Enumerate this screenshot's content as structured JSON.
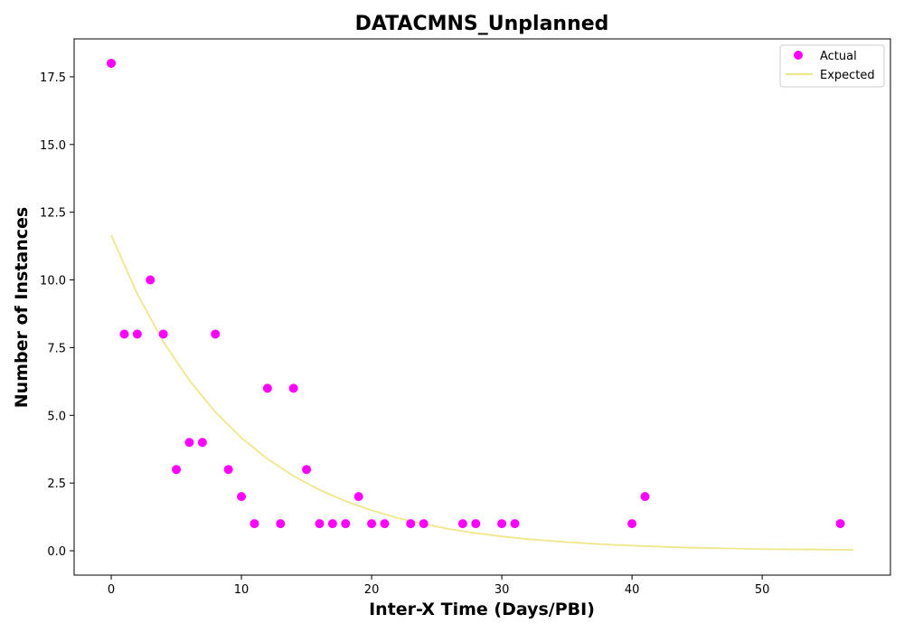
{
  "chart_data": {
    "type": "scatter",
    "title": "DATACMNS_Unplanned",
    "xlabel": "Inter-X Time (Days/PBI)",
    "ylabel": "Number of Instances",
    "xlim": [
      -2.85,
      59.85
    ],
    "ylim": [
      -0.9,
      18.9
    ],
    "x_ticks": [
      0,
      10,
      20,
      30,
      40,
      50
    ],
    "y_ticks": [
      0.0,
      2.5,
      5.0,
      7.5,
      10.0,
      12.5,
      15.0,
      17.5
    ],
    "x_tick_labels": [
      "0",
      "10",
      "20",
      "30",
      "40",
      "50"
    ],
    "y_tick_labels": [
      "0.0",
      "2.5",
      "5.0",
      "7.5",
      "10.0",
      "12.5",
      "15.0",
      "17.5"
    ],
    "grid": false,
    "legend_position": "top-right",
    "series": [
      {
        "name": "Actual",
        "kind": "scatter",
        "color": "#ff00ff",
        "x": [
          0,
          1,
          2,
          3,
          4,
          5,
          6,
          7,
          8,
          9,
          10,
          11,
          12,
          13,
          14,
          15,
          16,
          17,
          18,
          19,
          20,
          21,
          23,
          24,
          27,
          28,
          30,
          31,
          40,
          41,
          56
        ],
        "y": [
          18,
          8,
          8,
          10,
          8,
          3,
          4,
          4,
          8,
          3,
          2,
          1,
          6,
          1,
          6,
          3,
          1,
          1,
          1,
          2,
          1,
          1,
          1,
          1,
          1,
          1,
          1,
          1,
          1,
          2,
          1
        ]
      },
      {
        "name": "Expected",
        "kind": "line",
        "color": "#f0e68c",
        "x": [
          0,
          2,
          4,
          6,
          8,
          10,
          12,
          14,
          16,
          18,
          20,
          22,
          24,
          26,
          28,
          30,
          32,
          35,
          38,
          41,
          44,
          47,
          50,
          53,
          57
        ],
        "y": [
          11.65,
          9.48,
          7.72,
          6.29,
          5.12,
          4.17,
          3.39,
          2.76,
          2.25,
          1.83,
          1.49,
          1.21,
          0.99,
          0.8,
          0.65,
          0.53,
          0.43,
          0.32,
          0.23,
          0.17,
          0.12,
          0.09,
          0.06,
          0.05,
          0.03
        ]
      }
    ]
  }
}
